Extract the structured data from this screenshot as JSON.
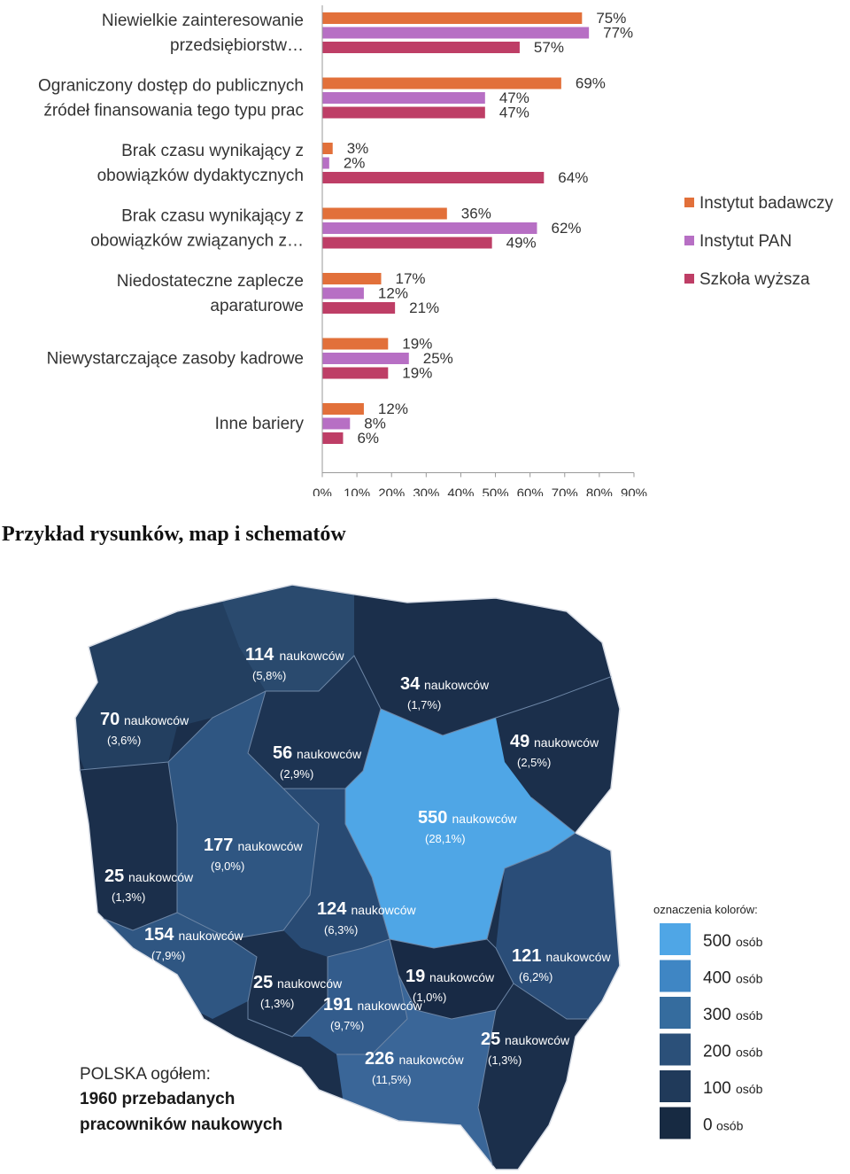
{
  "chart_data": {
    "type": "bar",
    "orientation": "horizontal",
    "categories": [
      [
        "Niewielkie zainteresowanie",
        "przedsiębiorstw…"
      ],
      [
        "Ograniczony dostęp do publicznych",
        "źródeł finansowania tego typu prac"
      ],
      [
        "Brak czasu wynikający z",
        "obowiązków dydaktycznych"
      ],
      [
        "Brak czasu wynikający z",
        "obowiązków związanych z…"
      ],
      [
        "Niedostateczne zaplecze",
        "aparaturowe"
      ],
      [
        "Niewystarczające zasoby kadrowe"
      ],
      [
        "Inne bariery"
      ]
    ],
    "series": [
      {
        "name": "Instytut badawczy",
        "color": "#E2703A",
        "values": [
          75,
          69,
          3,
          36,
          17,
          19,
          12
        ]
      },
      {
        "name": "Instytut PAN",
        "color": "#B76FC4",
        "values": [
          77,
          47,
          2,
          62,
          12,
          25,
          8
        ]
      },
      {
        "name": "Szkoła wyższa",
        "color": "#BE3E66",
        "values": [
          57,
          47,
          64,
          49,
          21,
          19,
          6
        ]
      }
    ],
    "xlim": [
      0,
      90
    ],
    "x_ticks": [
      "0%",
      "10%",
      "20%",
      "30%",
      "40%",
      "50%",
      "60%",
      "70%",
      "80%",
      "90%"
    ],
    "legend_position": "right",
    "grid": false
  },
  "section_heading": "Przykład rysunków, map i schematów",
  "map": {
    "regions": [
      {
        "count": "114",
        "word": "naukowców",
        "pct": "(5,8%)",
        "color": "#2A4A6E"
      },
      {
        "count": "34",
        "word": "naukowców",
        "pct": "(1,7%)",
        "color": "#1B2F4B"
      },
      {
        "count": "70",
        "word": "naukowców",
        "pct": "(3,6%)",
        "color": "#233F60"
      },
      {
        "count": "56",
        "word": "naukowców",
        "pct": "(2,9%)",
        "color": "#1D3453"
      },
      {
        "count": "49",
        "word": "naukowców",
        "pct": "(2,5%)",
        "color": "#1B2F4B"
      },
      {
        "count": "550",
        "word": "naukowców",
        "pct": "(28,1%)",
        "color": "#4FA6E6"
      },
      {
        "count": "177",
        "word": "naukowców",
        "pct": "(9,0%)",
        "color": "#2F5682"
      },
      {
        "count": "25",
        "word": "naukowców",
        "pct": "(1,3%)",
        "color": "#1B2F4B"
      },
      {
        "count": "124",
        "word": "naukowców",
        "pct": "(6,3%)",
        "color": "#284A73"
      },
      {
        "count": "154",
        "word": "naukowców",
        "pct": "(7,9%)",
        "color": "#2F5682"
      },
      {
        "count": "121",
        "word": "naukowców",
        "pct": "(6,2%)",
        "color": "#2A4D78"
      },
      {
        "count": "25",
        "word": "naukowców",
        "pct": "(1,3%)",
        "color": "#1B2F4B"
      },
      {
        "count": "19",
        "word": "naukowców",
        "pct": "(1,0%)",
        "color": "#182A45"
      },
      {
        "count": "191",
        "word": "naukowców",
        "pct": "(9,7%)",
        "color": "#335C8C"
      },
      {
        "count": "25",
        "word": "naukowców",
        "pct": "(1,3%)",
        "color": "#1B2F4B"
      },
      {
        "count": "226",
        "word": "naukowców",
        "pct": "(11,5%)",
        "color": "#3A6698"
      }
    ],
    "legend": {
      "title": "oznaczenia kolorów:",
      "items": [
        {
          "value": "500",
          "unit": "osób",
          "color": "#4FA6E6"
        },
        {
          "value": "400",
          "unit": "osób",
          "color": "#3F86C4"
        },
        {
          "value": "300",
          "unit": "osób",
          "color": "#356C9E"
        },
        {
          "value": "200",
          "unit": "osób",
          "color": "#2B5079"
        },
        {
          "value": "100",
          "unit": "osób",
          "color": "#203A5A"
        },
        {
          "value": "0",
          "unit": "osób",
          "color": "#172A42"
        }
      ]
    },
    "summary": {
      "line1": "POLSKA ogółem:",
      "line2": "1960 przebadanych",
      "line3": "pracowników naukowych"
    }
  }
}
